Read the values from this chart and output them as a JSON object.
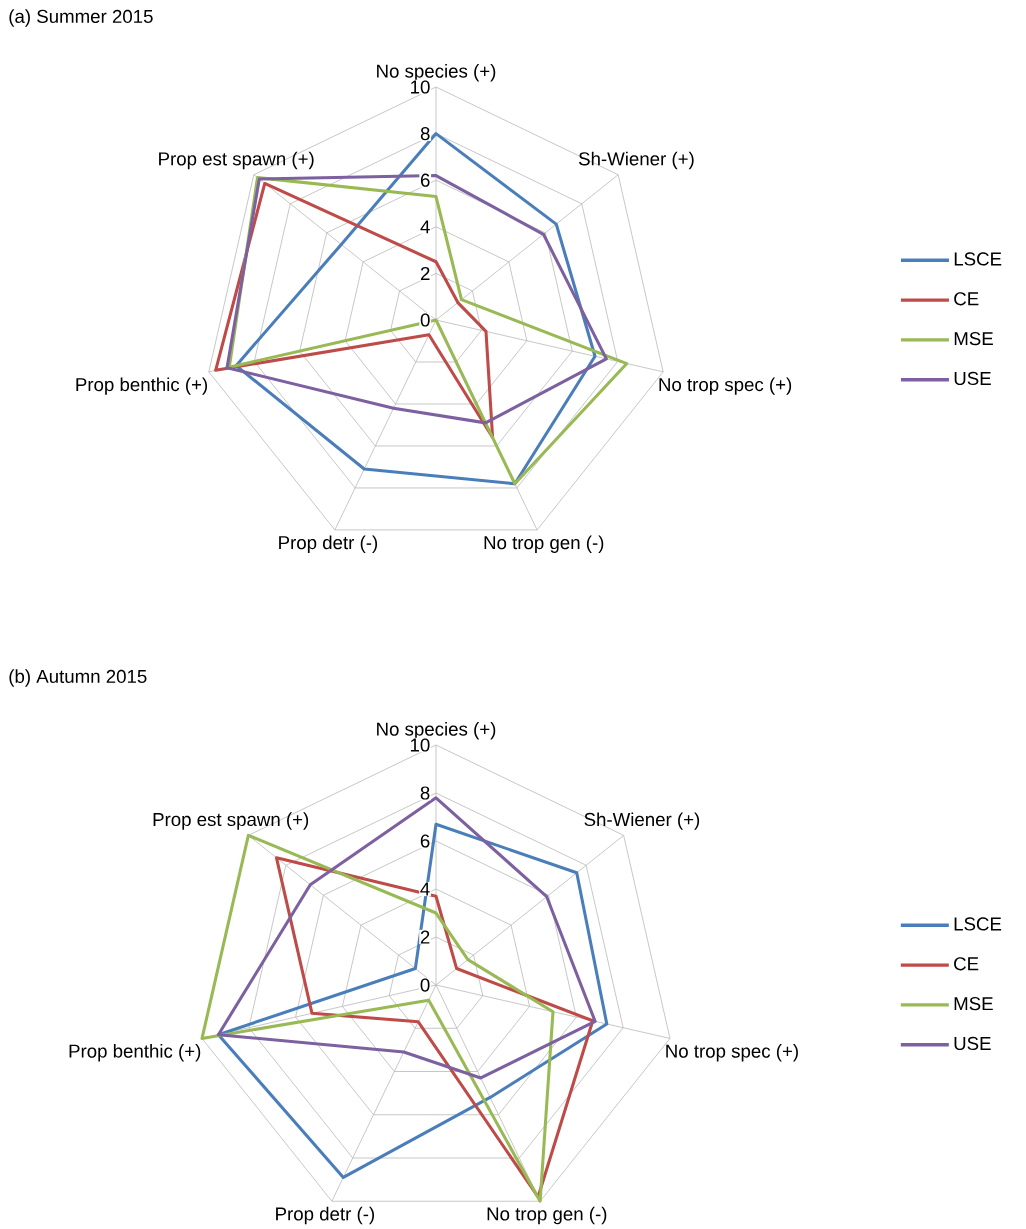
{
  "chart_data": [
    {
      "type": "radar",
      "title": "(a) Summer 2015",
      "categories": [
        "No species (+)",
        "Sh-Wiener (+)",
        "No trop spec (+)",
        "No trop gen (-)",
        "Prop detr (-)",
        "Prop benthic (+)",
        "Prop est spawn (+)"
      ],
      "ylim": [
        0,
        10
      ],
      "yticks": [
        0,
        2,
        4,
        6,
        8,
        10
      ],
      "grid": true,
      "legend": "right",
      "series": [
        {
          "name": "LSCE",
          "color": "#4a7ebb",
          "values": [
            8.0,
            6.6,
            7.0,
            7.8,
            7.1,
            8.8,
            5.2
          ]
        },
        {
          "name": "CE",
          "color": "#be4b48",
          "values": [
            2.5,
            1.2,
            2.2,
            5.6,
            0.7,
            9.7,
            9.4
          ]
        },
        {
          "name": "MSE",
          "color": "#98b954",
          "values": [
            5.3,
            1.4,
            8.4,
            7.8,
            0,
            9.1,
            9.8
          ]
        },
        {
          "name": "USE",
          "color": "#7d60a0",
          "values": [
            6.2,
            5.9,
            7.5,
            4.9,
            4.2,
            9.2,
            9.7
          ]
        }
      ]
    },
    {
      "type": "radar",
      "title": "(b) Autumn 2015",
      "categories": [
        "No species (+)",
        "Sh-Wiener (+)",
        "No trop spec (+)",
        "No trop gen (-)",
        "Prop detr (-)",
        "Prop benthic (+)",
        "Prop est spawn (+)"
      ],
      "ylim": [
        0,
        10
      ],
      "yticks": [
        0,
        2,
        4,
        6,
        8,
        10
      ],
      "grid": true,
      "legend": "right",
      "series": [
        {
          "name": "LSCE",
          "color": "#4a7ebb",
          "values": [
            6.7,
            7.5,
            7.3,
            5.2,
            8.9,
            9.3,
            1.1
          ]
        },
        {
          "name": "CE",
          "color": "#be4b48",
          "values": [
            3.7,
            1.1,
            6.7,
            9.8,
            1.7,
            5.3,
            8.5
          ]
        },
        {
          "name": "MSE",
          "color": "#98b954",
          "values": [
            3.0,
            1.7,
            5.0,
            10,
            0.7,
            10,
            10
          ]
        },
        {
          "name": "USE",
          "color": "#7d60a0",
          "values": [
            7.8,
            5.9,
            6.8,
            4.3,
            3.1,
            9.3,
            6.7
          ]
        }
      ]
    }
  ]
}
